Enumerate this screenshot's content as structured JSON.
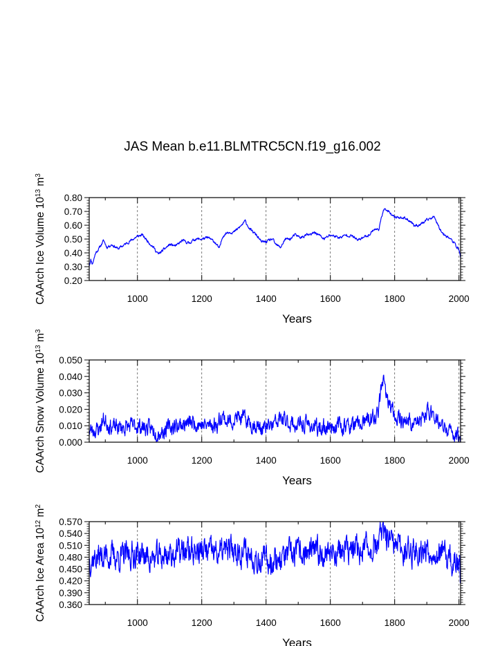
{
  "title": "JAS Mean b.e11.BLMTRC5CN.f19_g16.002",
  "chart_data": [
    {
      "type": "line",
      "ylabel": {
        "pre": "CAArch Ice Volume 10",
        "exp": "13",
        "mid": " m",
        "exp2": "3"
      },
      "xlabel": "Years",
      "xlim": [
        850,
        2005
      ],
      "ylim": [
        0.2,
        0.8
      ],
      "xticks": [
        "1000",
        "1200",
        "1400",
        "1600",
        "1800",
        "2000"
      ],
      "yticks": [
        "0.20",
        "0.30",
        "0.40",
        "0.50",
        "0.60",
        "0.70",
        "0.80"
      ],
      "series_color": "#0000ff",
      "anchors": [
        [
          850,
          0.31
        ],
        [
          855,
          0.35
        ],
        [
          860,
          0.32
        ],
        [
          870,
          0.4
        ],
        [
          880,
          0.43
        ],
        [
          895,
          0.49
        ],
        [
          905,
          0.44
        ],
        [
          920,
          0.46
        ],
        [
          940,
          0.43
        ],
        [
          960,
          0.46
        ],
        [
          980,
          0.49
        ],
        [
          1000,
          0.52
        ],
        [
          1015,
          0.53
        ],
        [
          1030,
          0.49
        ],
        [
          1050,
          0.44
        ],
        [
          1065,
          0.39
        ],
        [
          1080,
          0.42
        ],
        [
          1100,
          0.46
        ],
        [
          1120,
          0.45
        ],
        [
          1140,
          0.49
        ],
        [
          1160,
          0.47
        ],
        [
          1180,
          0.5
        ],
        [
          1200,
          0.5
        ],
        [
          1220,
          0.51
        ],
        [
          1240,
          0.48
        ],
        [
          1255,
          0.43
        ],
        [
          1265,
          0.52
        ],
        [
          1280,
          0.55
        ],
        [
          1300,
          0.55
        ],
        [
          1320,
          0.59
        ],
        [
          1335,
          0.63
        ],
        [
          1350,
          0.57
        ],
        [
          1370,
          0.53
        ],
        [
          1385,
          0.48
        ],
        [
          1400,
          0.48
        ],
        [
          1420,
          0.5
        ],
        [
          1430,
          0.46
        ],
        [
          1445,
          0.44
        ],
        [
          1460,
          0.5
        ],
        [
          1475,
          0.5
        ],
        [
          1490,
          0.53
        ],
        [
          1510,
          0.51
        ],
        [
          1525,
          0.53
        ],
        [
          1540,
          0.53
        ],
        [
          1550,
          0.55
        ],
        [
          1565,
          0.53
        ],
        [
          1580,
          0.5
        ],
        [
          1600,
          0.53
        ],
        [
          1615,
          0.52
        ],
        [
          1630,
          0.51
        ],
        [
          1650,
          0.53
        ],
        [
          1670,
          0.52
        ],
        [
          1685,
          0.49
        ],
        [
          1700,
          0.51
        ],
        [
          1720,
          0.53
        ],
        [
          1735,
          0.57
        ],
        [
          1750,
          0.57
        ],
        [
          1758,
          0.64
        ],
        [
          1765,
          0.72
        ],
        [
          1780,
          0.7
        ],
        [
          1795,
          0.66
        ],
        [
          1810,
          0.66
        ],
        [
          1830,
          0.65
        ],
        [
          1850,
          0.63
        ],
        [
          1860,
          0.6
        ],
        [
          1875,
          0.6
        ],
        [
          1890,
          0.62
        ],
        [
          1910,
          0.65
        ],
        [
          1925,
          0.66
        ],
        [
          1935,
          0.6
        ],
        [
          1950,
          0.54
        ],
        [
          1970,
          0.51
        ],
        [
          1985,
          0.47
        ],
        [
          1995,
          0.44
        ],
        [
          2000,
          0.42
        ],
        [
          2005,
          0.37
        ]
      ],
      "noise": 0.008,
      "seed": 11
    },
    {
      "type": "line",
      "ylabel": {
        "pre": "CAArch Snow Volume 10",
        "exp": "13",
        "mid": " m",
        "exp2": "3"
      },
      "xlabel": "Years",
      "xlim": [
        850,
        2005
      ],
      "ylim": [
        0.0,
        0.05
      ],
      "xticks": [
        "1000",
        "1200",
        "1400",
        "1600",
        "1800",
        "2000"
      ],
      "yticks": [
        "0.000",
        "0.010",
        "0.020",
        "0.030",
        "0.040",
        "0.050"
      ],
      "series_color": "#0000ff",
      "anchors": [
        [
          850,
          0.007
        ],
        [
          880,
          0.008
        ],
        [
          895,
          0.014
        ],
        [
          920,
          0.009
        ],
        [
          960,
          0.009
        ],
        [
          1000,
          0.01
        ],
        [
          1040,
          0.008
        ],
        [
          1070,
          0.006
        ],
        [
          1100,
          0.009
        ],
        [
          1140,
          0.011
        ],
        [
          1180,
          0.012
        ],
        [
          1210,
          0.01
        ],
        [
          1250,
          0.011
        ],
        [
          1262,
          0.017
        ],
        [
          1280,
          0.012
        ],
        [
          1310,
          0.015
        ],
        [
          1330,
          0.014
        ],
        [
          1360,
          0.011
        ],
        [
          1390,
          0.008
        ],
        [
          1420,
          0.01
        ],
        [
          1445,
          0.014
        ],
        [
          1470,
          0.012
        ],
        [
          1500,
          0.01
        ],
        [
          1530,
          0.011
        ],
        [
          1560,
          0.008
        ],
        [
          1600,
          0.01
        ],
        [
          1640,
          0.01
        ],
        [
          1680,
          0.01
        ],
        [
          1720,
          0.013
        ],
        [
          1745,
          0.016
        ],
        [
          1755,
          0.026
        ],
        [
          1763,
          0.04
        ],
        [
          1772,
          0.028
        ],
        [
          1785,
          0.022
        ],
        [
          1800,
          0.017
        ],
        [
          1820,
          0.014
        ],
        [
          1850,
          0.012
        ],
        [
          1880,
          0.012
        ],
        [
          1900,
          0.018
        ],
        [
          1920,
          0.019
        ],
        [
          1940,
          0.01
        ],
        [
          1970,
          0.006
        ],
        [
          2000,
          0.004
        ],
        [
          2005,
          0.002
        ]
      ],
      "noise": 0.004,
      "seed": 23
    },
    {
      "type": "line",
      "ylabel": {
        "pre": "CAArch Ice Area 10",
        "exp": "12",
        "mid": " m",
        "exp2": "2"
      },
      "xlabel": "Years",
      "xlim": [
        850,
        2005
      ],
      "ylim": [
        0.36,
        0.57
      ],
      "xticks": [
        "1000",
        "1200",
        "1400",
        "1600",
        "1800",
        "2000"
      ],
      "yticks": [
        "0.360",
        "0.390",
        "0.420",
        "0.450",
        "0.480",
        "0.510",
        "0.540",
        "0.570"
      ],
      "series_color": "#0000ff",
      "anchors": [
        [
          850,
          0.475
        ],
        [
          900,
          0.485
        ],
        [
          950,
          0.48
        ],
        [
          1000,
          0.49
        ],
        [
          1050,
          0.475
        ],
        [
          1100,
          0.488
        ],
        [
          1150,
          0.495
        ],
        [
          1200,
          0.495
        ],
        [
          1250,
          0.49
        ],
        [
          1300,
          0.5
        ],
        [
          1350,
          0.488
        ],
        [
          1400,
          0.47
        ],
        [
          1450,
          0.48
        ],
        [
          1500,
          0.49
        ],
        [
          1550,
          0.49
        ],
        [
          1600,
          0.495
        ],
        [
          1650,
          0.495
        ],
        [
          1700,
          0.5
        ],
        [
          1740,
          0.51
        ],
        [
          1765,
          0.54
        ],
        [
          1790,
          0.51
        ],
        [
          1820,
          0.5
        ],
        [
          1860,
          0.495
        ],
        [
          1900,
          0.5
        ],
        [
          1950,
          0.485
        ],
        [
          2000,
          0.455
        ],
        [
          2005,
          0.435
        ]
      ],
      "noise": 0.028,
      "seed": 37
    }
  ]
}
